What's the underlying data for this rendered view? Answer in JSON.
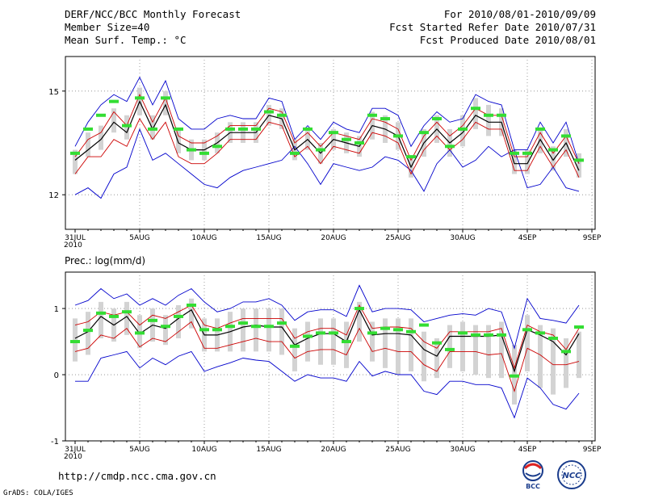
{
  "header": {
    "title": "DERF/NCC/BCC Monthly Forecast",
    "member_size": "Member Size=40",
    "variable": "Mean Surf. Temp.: °C",
    "forecast_period": "For 2010/08/01-2010/09/09",
    "start_date": "Fcst Started Refer Date 2010/07/31",
    "produced_date": "Fcst Produced Date 2010/08/01"
  },
  "footer": {
    "url": "http://cmdp.ncc.cma.gov.cn",
    "credit": "GrADS: COLA/IGES",
    "logo_bcc": "BCC",
    "logo_ncc": "NCC"
  },
  "colors": {
    "ensemble_max_min": "#0000cc",
    "ensemble_std": "#cc0000",
    "ensemble_mean": "#000000",
    "member_box": "#d3d3d3",
    "observed": "#33dd33",
    "grid": "#888888"
  },
  "chart_data": [
    {
      "type": "line",
      "title": "Mean Surf. Temp.: °C",
      "x_tick_labels": [
        "31JUL",
        "5AUG",
        "10AUG",
        "15AUG",
        "20AUG",
        "25AUG",
        "30AUG",
        "4SEP",
        "9SEP"
      ],
      "x_tick_sublabel": "2010",
      "y_ticks": [
        12,
        15
      ],
      "ylim": [
        11.0,
        16.0
      ],
      "days": 40,
      "series": [
        {
          "name": "max",
          "values": [
            12.0,
            12.2,
            11.9,
            12.6,
            12.8,
            13.9,
            13.0,
            13.2,
            12.9,
            12.6,
            12.3,
            12.2,
            12.5,
            12.7,
            12.8,
            12.9,
            13.0,
            13.4,
            12.9,
            12.3,
            12.9,
            12.8,
            12.7,
            12.8,
            13.1,
            13.0,
            12.7,
            12.1,
            12.9,
            13.3,
            12.8,
            13.0,
            13.4,
            13.1,
            13.3,
            12.2,
            12.3,
            12.8,
            12.2,
            12.1
          ]
        },
        {
          "name": "max_upper",
          "values": [
            13.4,
            14.1,
            14.6,
            14.9,
            14.7,
            15.4,
            14.6,
            15.3,
            14.2,
            13.9,
            13.9,
            14.2,
            14.3,
            14.2,
            14.2,
            14.8,
            14.7,
            13.6,
            14.0,
            13.6,
            14.1,
            13.9,
            13.8,
            14.5,
            14.5,
            14.3,
            13.4,
            14.0,
            14.4,
            14.1,
            14.2,
            14.9,
            14.7,
            14.6,
            13.3,
            13.3,
            14.1,
            13.5,
            14.1,
            12.9
          ]
        },
        {
          "name": "mean",
          "values": [
            13.0,
            13.3,
            13.6,
            14.1,
            13.8,
            14.7,
            13.9,
            14.6,
            13.5,
            13.3,
            13.3,
            13.5,
            13.8,
            13.8,
            13.8,
            14.3,
            14.2,
            13.3,
            13.6,
            13.2,
            13.6,
            13.5,
            13.4,
            14.0,
            13.9,
            13.7,
            12.8,
            13.5,
            13.9,
            13.5,
            13.8,
            14.3,
            14.1,
            14.1,
            12.9,
            12.9,
            13.6,
            13.0,
            13.5,
            12.7
          ]
        },
        {
          "name": "std_upper",
          "values": [
            13.1,
            13.6,
            13.8,
            14.4,
            14.0,
            14.9,
            14.1,
            14.8,
            13.7,
            13.5,
            13.5,
            13.7,
            14.0,
            14.0,
            14.0,
            14.5,
            14.4,
            13.5,
            13.8,
            13.4,
            13.8,
            13.7,
            13.6,
            14.2,
            14.1,
            13.9,
            13.0,
            13.7,
            14.1,
            13.7,
            14.0,
            14.5,
            14.3,
            14.3,
            13.1,
            13.1,
            13.8,
            13.2,
            13.7,
            12.9
          ]
        },
        {
          "name": "std_lower",
          "values": [
            12.6,
            13.1,
            13.1,
            13.6,
            13.4,
            14.2,
            13.6,
            14.1,
            13.1,
            12.9,
            12.9,
            13.2,
            13.6,
            13.6,
            13.6,
            14.1,
            14.0,
            13.1,
            13.4,
            12.9,
            13.4,
            13.3,
            13.2,
            13.8,
            13.7,
            13.5,
            12.6,
            13.3,
            13.7,
            13.3,
            13.6,
            14.1,
            13.9,
            13.9,
            12.7,
            12.7,
            13.4,
            12.8,
            13.3,
            12.5
          ]
        }
      ],
      "members_box": [
        [
          12.6,
          13.3
        ],
        [
          13.1,
          13.8
        ],
        [
          13.3,
          14.0
        ],
        [
          13.8,
          14.5
        ],
        [
          13.6,
          14.3
        ],
        [
          14.3,
          15.1
        ],
        [
          13.6,
          14.3
        ],
        [
          14.3,
          15.0
        ],
        [
          13.2,
          13.9
        ],
        [
          13.0,
          13.6
        ],
        [
          13.0,
          13.6
        ],
        [
          13.2,
          13.8
        ],
        [
          13.5,
          14.1
        ],
        [
          13.5,
          14.1
        ],
        [
          13.5,
          14.1
        ],
        [
          14.0,
          14.6
        ],
        [
          13.9,
          14.5
        ],
        [
          13.0,
          13.6
        ],
        [
          13.3,
          13.9
        ],
        [
          12.9,
          13.5
        ],
        [
          13.3,
          13.9
        ],
        [
          13.2,
          13.8
        ],
        [
          13.1,
          13.7
        ],
        [
          13.6,
          14.4
        ],
        [
          13.5,
          14.3
        ],
        [
          13.3,
          14.1
        ],
        [
          12.5,
          13.1
        ],
        [
          13.1,
          13.9
        ],
        [
          13.5,
          14.3
        ],
        [
          13.1,
          13.9
        ],
        [
          13.4,
          14.3
        ],
        [
          13.9,
          14.8
        ],
        [
          13.7,
          14.6
        ],
        [
          13.7,
          14.5
        ],
        [
          12.6,
          13.3
        ],
        [
          12.6,
          13.3
        ],
        [
          13.2,
          13.9
        ],
        [
          12.7,
          13.4
        ],
        [
          13.1,
          13.9
        ],
        [
          12.5,
          13.2
        ]
      ],
      "observed": [
        13.2,
        13.9,
        14.3,
        14.7,
        14.0,
        14.8,
        13.9,
        14.8,
        13.9,
        13.3,
        13.2,
        13.4,
        13.9,
        13.9,
        13.9,
        14.4,
        14.3,
        13.2,
        13.9,
        13.3,
        13.8,
        13.6,
        13.5,
        14.3,
        14.2,
        13.7,
        13.1,
        13.8,
        14.2,
        13.4,
        13.9,
        14.5,
        14.3,
        14.3,
        13.2,
        13.2,
        13.9,
        13.3,
        13.7,
        13.0
      ]
    },
    {
      "type": "line",
      "title": "Prec.: log(mm/d)",
      "x_tick_labels": [
        "31JUL",
        "5AUG",
        "10AUG",
        "15AUG",
        "20AUG",
        "25AUG",
        "30AUG",
        "4SEP",
        "9SEP"
      ],
      "x_tick_sublabel": "2010",
      "y_ticks": [
        -1,
        0,
        1
      ],
      "ylim": [
        -1.0,
        1.55
      ],
      "days": 40,
      "series": [
        {
          "name": "max_upper",
          "values": [
            1.05,
            1.12,
            1.3,
            1.15,
            1.22,
            1.05,
            1.15,
            1.05,
            1.2,
            1.3,
            1.1,
            0.95,
            1.0,
            1.1,
            1.1,
            1.15,
            1.05,
            0.82,
            0.95,
            0.98,
            0.98,
            0.88,
            1.35,
            0.95,
            1.0,
            1.0,
            0.98,
            0.8,
            0.85,
            0.9,
            0.92,
            0.9,
            1.0,
            0.95,
            0.4,
            1.15,
            0.85,
            0.82,
            0.78,
            1.05
          ]
        },
        {
          "name": "std_upper",
          "values": [
            0.75,
            0.8,
            0.95,
            0.9,
            0.95,
            0.75,
            0.9,
            0.85,
            0.95,
            1.05,
            0.75,
            0.7,
            0.78,
            0.85,
            0.85,
            0.85,
            0.85,
            0.55,
            0.65,
            0.7,
            0.7,
            0.6,
            1.05,
            0.7,
            0.72,
            0.72,
            0.7,
            0.5,
            0.4,
            0.65,
            0.65,
            0.65,
            0.65,
            0.7,
            0.1,
            0.75,
            0.65,
            0.6,
            0.38,
            0.7
          ]
        },
        {
          "name": "mean",
          "values": [
            0.55,
            0.65,
            0.88,
            0.75,
            0.88,
            0.62,
            0.75,
            0.7,
            0.85,
            0.98,
            0.6,
            0.6,
            0.65,
            0.72,
            0.75,
            0.72,
            0.72,
            0.45,
            0.55,
            0.62,
            0.62,
            0.5,
            0.98,
            0.6,
            0.62,
            0.62,
            0.6,
            0.38,
            0.28,
            0.58,
            0.58,
            0.58,
            0.58,
            0.6,
            0.05,
            0.68,
            0.6,
            0.5,
            0.3,
            0.62
          ]
        },
        {
          "name": "std_lower",
          "values": [
            0.35,
            0.4,
            0.6,
            0.55,
            0.7,
            0.42,
            0.55,
            0.5,
            0.65,
            0.8,
            0.4,
            0.4,
            0.45,
            0.5,
            0.55,
            0.5,
            0.5,
            0.25,
            0.35,
            0.38,
            0.38,
            0.3,
            0.7,
            0.35,
            0.4,
            0.35,
            0.35,
            0.15,
            0.05,
            0.35,
            0.35,
            0.35,
            0.3,
            0.32,
            -0.25,
            0.4,
            0.3,
            0.15,
            0.15,
            0.2
          ]
        },
        {
          "name": "min",
          "values": [
            -0.1,
            -0.1,
            0.25,
            0.3,
            0.35,
            0.1,
            0.25,
            0.15,
            0.28,
            0.35,
            0.05,
            0.12,
            0.18,
            0.25,
            0.22,
            0.2,
            0.05,
            -0.1,
            0.0,
            -0.05,
            -0.05,
            -0.1,
            0.2,
            -0.02,
            0.05,
            0.0,
            0.0,
            -0.25,
            -0.3,
            -0.1,
            -0.1,
            -0.15,
            -0.15,
            -0.2,
            -0.65,
            -0.05,
            -0.2,
            -0.45,
            -0.52,
            -0.28
          ]
        }
      ],
      "members_box": [
        [
          0.2,
          0.85
        ],
        [
          0.3,
          0.95
        ],
        [
          0.55,
          1.1
        ],
        [
          0.5,
          1.0
        ],
        [
          0.6,
          1.1
        ],
        [
          0.4,
          0.9
        ],
        [
          0.5,
          1.0
        ],
        [
          0.45,
          0.9
        ],
        [
          0.55,
          1.05
        ],
        [
          0.7,
          1.15
        ],
        [
          0.35,
          0.85
        ],
        [
          0.35,
          0.85
        ],
        [
          0.35,
          0.95
        ],
        [
          0.35,
          1.0
        ],
        [
          0.35,
          1.0
        ],
        [
          0.35,
          1.0
        ],
        [
          0.3,
          1.0
        ],
        [
          0.05,
          0.7
        ],
        [
          0.2,
          0.8
        ],
        [
          0.15,
          0.85
        ],
        [
          0.15,
          0.85
        ],
        [
          0.1,
          0.8
        ],
        [
          0.5,
          1.1
        ],
        [
          0.2,
          0.8
        ],
        [
          0.1,
          0.85
        ],
        [
          0.0,
          0.85
        ],
        [
          0.05,
          0.85
        ],
        [
          -0.1,
          0.65
        ],
        [
          -0.05,
          0.55
        ],
        [
          0.1,
          0.75
        ],
        [
          0.05,
          0.8
        ],
        [
          0.0,
          0.75
        ],
        [
          -0.05,
          0.75
        ],
        [
          -0.05,
          0.8
        ],
        [
          -0.45,
          0.45
        ],
        [
          0.05,
          0.9
        ],
        [
          -0.2,
          0.75
        ],
        [
          -0.3,
          0.7
        ],
        [
          -0.2,
          0.55
        ],
        [
          -0.05,
          0.65
        ]
      ],
      "observed": [
        0.5,
        0.67,
        0.93,
        0.88,
        0.95,
        0.63,
        0.82,
        0.73,
        0.88,
        1.05,
        0.68,
        0.68,
        0.73,
        0.78,
        0.73,
        0.73,
        0.78,
        0.43,
        0.58,
        0.63,
        0.63,
        0.5,
        1.0,
        0.63,
        0.7,
        0.68,
        0.65,
        0.75,
        0.48,
        0.38,
        0.63,
        0.6,
        0.6,
        0.6,
        -0.02,
        0.68,
        0.63,
        0.55,
        0.35,
        0.72
      ]
    }
  ]
}
